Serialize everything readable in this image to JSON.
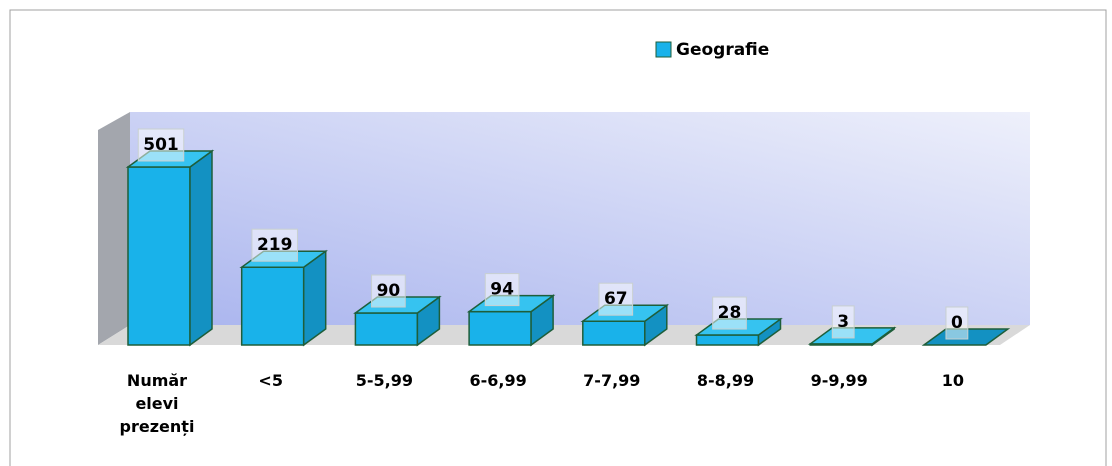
{
  "chart_data": {
    "type": "bar3d",
    "legend": "Geografie",
    "color": "#19b2ea",
    "categories": [
      "Număr elevi prezenți",
      "<5",
      "5-5,99",
      "6-6,99",
      "7-7,99",
      "8-8,99",
      "9-9,99",
      "10"
    ],
    "values": [
      501,
      219,
      90,
      94,
      67,
      28,
      3,
      0
    ]
  }
}
